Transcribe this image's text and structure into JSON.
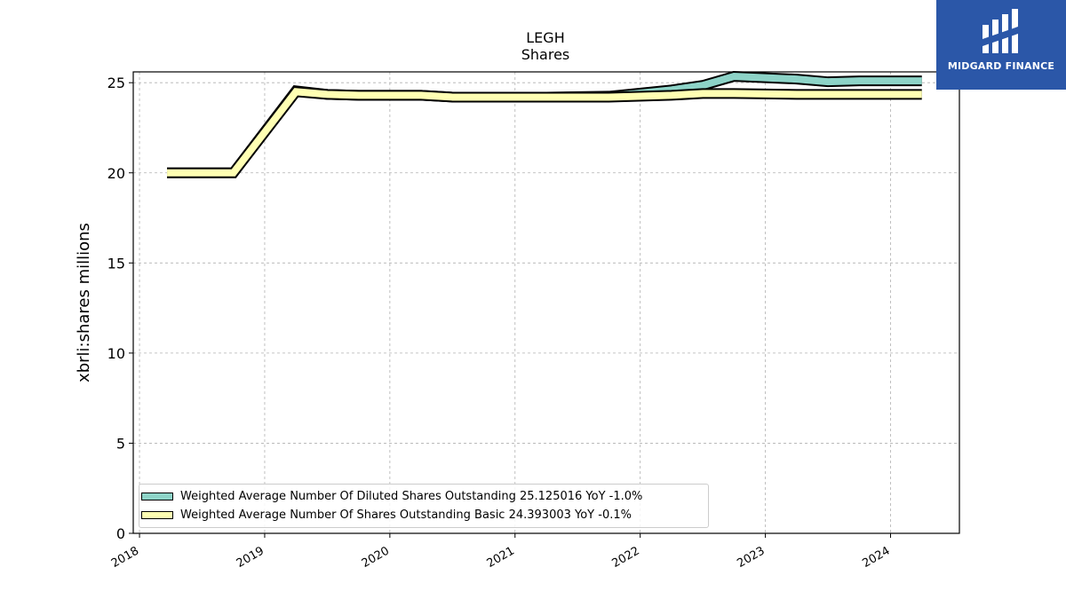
{
  "chart_data": {
    "type": "line",
    "title": "LEGH",
    "subtitle": "Shares",
    "ylabel": "xbrli:shares millions",
    "xlabel": "",
    "ylim": [
      0,
      25.6
    ],
    "xlim": [
      2017.95,
      2024.55
    ],
    "yticks": [
      0,
      5,
      10,
      15,
      20,
      25
    ],
    "xticks": [
      "2018",
      "2019",
      "2020",
      "2021",
      "2022",
      "2023",
      "2024"
    ],
    "grid": true,
    "legend_position": "lower-left",
    "series": [
      {
        "name": "Weighted Average Number Of Diluted Shares Outstanding",
        "legend_label": "Weighted Average Number Of Diluted Shares Outstanding  25.125016 YoY -1.0%",
        "color": "#8dd3c7",
        "x": [
          2018.22,
          2018.75,
          2019.25,
          2019.5,
          2019.75,
          2020.25,
          2020.5,
          2020.75,
          2021.25,
          2021.75,
          2022.25,
          2022.5,
          2022.75,
          2023.25,
          2023.5,
          2023.75,
          2024.25
        ],
        "y": [
          20.0,
          20.0,
          24.55,
          24.35,
          24.3,
          24.3,
          24.2,
          24.2,
          24.2,
          24.25,
          24.6,
          24.85,
          25.35,
          25.2,
          25.05,
          25.1,
          25.1
        ]
      },
      {
        "name": "Weighted Average Number Of Shares Outstanding Basic",
        "legend_label": "Weighted Average Number Of Shares Outstanding Basic  24.393003 YoY -0.1%",
        "color": "#ffffb3",
        "x": [
          2018.22,
          2018.75,
          2019.25,
          2019.5,
          2019.75,
          2020.25,
          2020.5,
          2020.75,
          2021.25,
          2021.75,
          2022.25,
          2022.5,
          2022.75,
          2023.25,
          2023.5,
          2023.75,
          2024.25
        ],
        "y": [
          20.0,
          20.0,
          24.5,
          24.35,
          24.3,
          24.3,
          24.2,
          24.2,
          24.2,
          24.2,
          24.3,
          24.4,
          24.4,
          24.35,
          24.35,
          24.35,
          24.35
        ]
      }
    ]
  },
  "logo": {
    "text": "MIDGARD FINANCE"
  }
}
